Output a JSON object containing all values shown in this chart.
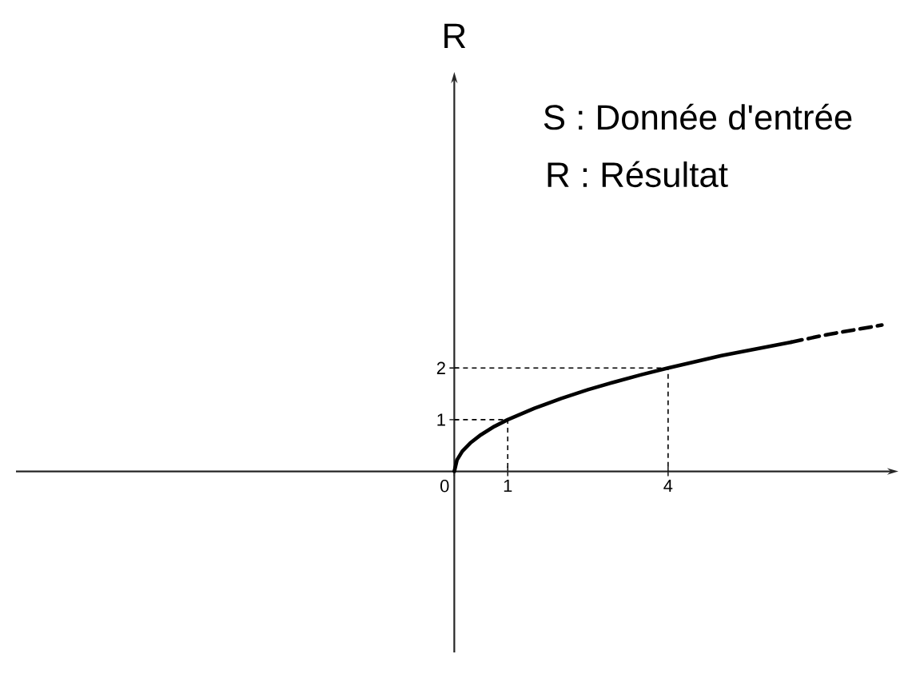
{
  "chart_data": {
    "type": "line",
    "ylabel": "R",
    "annotations": [
      "S : Donnée d'entrée",
      "R : Résultat"
    ],
    "xlim": [
      -8.2,
      8.1
    ],
    "ylim": [
      -3.5,
      7.6
    ],
    "xticks": [
      0,
      1,
      4
    ],
    "yticks": [
      1,
      2
    ],
    "marker": "none",
    "series": [
      {
        "color": "#000000",
        "line_style": "solid",
        "x": [
          0,
          0.05,
          0.15,
          0.3,
          0.5,
          0.75,
          1,
          1.5,
          2,
          2.5,
          3,
          3.5,
          4,
          5,
          6.3
        ],
        "values": [
          0,
          0.22,
          0.39,
          0.55,
          0.71,
          0.87,
          1,
          1.22,
          1.41,
          1.58,
          1.73,
          1.87,
          2,
          2.24,
          2.5
        ]
      },
      {
        "color": "#000000",
        "line_style": "dashed",
        "x": [
          6.3,
          7,
          8
        ],
        "values": [
          2.5,
          2.65,
          2.83
        ]
      },
      {
        "color": "#000000",
        "line_style": "dashed",
        "x": [
          0,
          1,
          1
        ],
        "values": [
          1,
          1,
          0
        ]
      },
      {
        "color": "#000000",
        "line_style": "dashed",
        "x": [
          0,
          4,
          4
        ],
        "values": [
          2,
          2,
          0
        ]
      }
    ]
  }
}
